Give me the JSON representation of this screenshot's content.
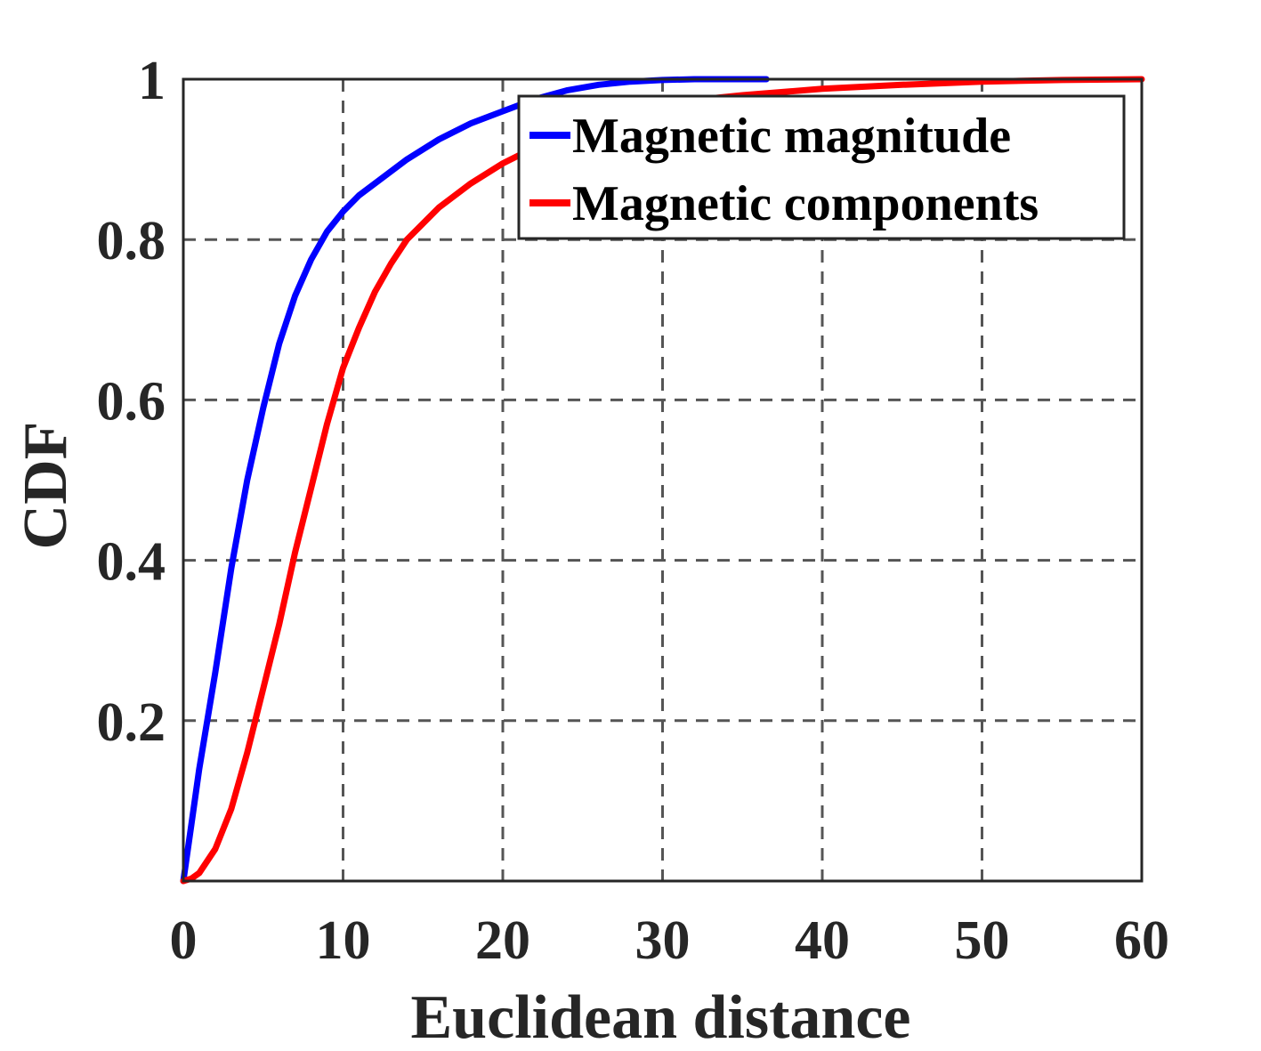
{
  "chart_data": {
    "type": "line",
    "title": "",
    "xlabel": "Euclidean distance",
    "ylabel": "CDF",
    "xlim": [
      0,
      60
    ],
    "ylim": [
      0,
      1
    ],
    "xticks": [
      0,
      10,
      20,
      30,
      40,
      50,
      60
    ],
    "yticks": [
      0.2,
      0.4,
      0.6,
      0.8,
      1
    ],
    "xtick_labels": [
      "0",
      "10",
      "20",
      "30",
      "40",
      "50",
      "60"
    ],
    "ytick_labels": [
      "0.2",
      "0.4",
      "0.6",
      "0.8",
      "1"
    ],
    "grid": true,
    "legend_position": "top-right",
    "series": [
      {
        "name": "Magnetic magnitude",
        "color": "#0000ff",
        "x": [
          0,
          0.5,
          1,
          1.5,
          2,
          3,
          4,
          5,
          6,
          7,
          8,
          9,
          10,
          11,
          12,
          14,
          16,
          18,
          20,
          22,
          24,
          26,
          28,
          30,
          32,
          34,
          36.5
        ],
        "y": [
          0,
          0.07,
          0.14,
          0.2,
          0.26,
          0.39,
          0.5,
          0.59,
          0.67,
          0.73,
          0.775,
          0.81,
          0.835,
          0.855,
          0.87,
          0.9,
          0.925,
          0.945,
          0.96,
          0.975,
          0.986,
          0.993,
          0.997,
          0.999,
          1,
          1,
          1
        ]
      },
      {
        "name": "Magnetic components",
        "color": "#ff0000",
        "x": [
          0,
          0.5,
          1,
          2,
          3,
          4,
          5,
          6,
          7,
          8,
          9,
          10,
          11,
          12,
          13,
          14,
          16,
          18,
          20,
          22,
          24,
          26,
          28,
          30,
          35,
          40,
          45,
          50,
          55,
          60
        ],
        "y": [
          0,
          0.003,
          0.01,
          0.04,
          0.09,
          0.16,
          0.24,
          0.32,
          0.41,
          0.49,
          0.57,
          0.64,
          0.69,
          0.735,
          0.77,
          0.8,
          0.84,
          0.87,
          0.895,
          0.915,
          0.935,
          0.95,
          0.96,
          0.97,
          0.98,
          0.988,
          0.993,
          0.997,
          0.999,
          1
        ]
      }
    ]
  }
}
